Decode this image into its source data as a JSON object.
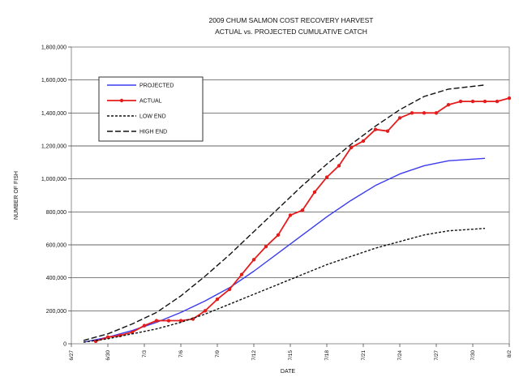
{
  "chart_data": {
    "type": "line",
    "title": [
      "2009 CHUM SALMON COST RECOVERY HARVEST",
      "ACTUAL vs. PROJECTED CUMULATIVE CATCH"
    ],
    "xlabel": "DATE",
    "ylabel": "NUMBER OF FISH",
    "x_tick_labels": [
      "6/27",
      "6/30",
      "7/3",
      "7/6",
      "7/9",
      "7/12",
      "7/15",
      "7/18",
      "7/21",
      "7/24",
      "7/27",
      "7/30",
      "8/2"
    ],
    "y_tick_labels": [
      "0",
      "200,000",
      "400,000",
      "600,000",
      "800,000",
      "1,000,000",
      "1,200,000",
      "1,400,000",
      "1,600,000",
      "1,800,000"
    ],
    "ylim": [
      0,
      1800000
    ],
    "x_range_days_from_june_27": [
      0,
      36
    ],
    "grid": "horizontal",
    "legend_position": "upper-left",
    "series": [
      {
        "name": "PROJECTED",
        "color": "#3b3bf0",
        "dash": "solid",
        "markers": false,
        "points": [
          [
            "6/28",
            10000
          ],
          [
            "6/30",
            40000
          ],
          [
            "7/2",
            80000
          ],
          [
            "7/4",
            130000
          ],
          [
            "7/6",
            190000
          ],
          [
            "7/8",
            260000
          ],
          [
            "7/10",
            340000
          ],
          [
            "7/12",
            440000
          ],
          [
            "7/14",
            550000
          ],
          [
            "7/16",
            660000
          ],
          [
            "7/18",
            770000
          ],
          [
            "7/20",
            870000
          ],
          [
            "7/22",
            960000
          ],
          [
            "7/24",
            1030000
          ],
          [
            "7/26",
            1080000
          ],
          [
            "7/28",
            1110000
          ],
          [
            "7/31",
            1125000
          ]
        ]
      },
      {
        "name": "ACTUAL",
        "color": "#e51c1c",
        "dash": "solid",
        "markers": true,
        "points": [
          [
            "6/29",
            15000
          ],
          [
            "6/30",
            40000
          ],
          [
            "7/1",
            50000
          ],
          [
            "7/2",
            70000
          ],
          [
            "7/3",
            110000
          ],
          [
            "7/4",
            140000
          ],
          [
            "7/5",
            140000
          ],
          [
            "7/6",
            140000
          ],
          [
            "7/7",
            150000
          ],
          [
            "7/8",
            200000
          ],
          [
            "7/9",
            270000
          ],
          [
            "7/10",
            330000
          ],
          [
            "7/11",
            420000
          ],
          [
            "7/12",
            510000
          ],
          [
            "7/13",
            590000
          ],
          [
            "7/14",
            660000
          ],
          [
            "7/15",
            780000
          ],
          [
            "7/16",
            810000
          ],
          [
            "7/17",
            920000
          ],
          [
            "7/18",
            1010000
          ],
          [
            "7/19",
            1080000
          ],
          [
            "7/20",
            1190000
          ],
          [
            "7/21",
            1230000
          ],
          [
            "7/22",
            1300000
          ],
          [
            "7/23",
            1290000
          ],
          [
            "7/24",
            1370000
          ],
          [
            "7/25",
            1400000
          ],
          [
            "7/26",
            1400000
          ],
          [
            "7/27",
            1400000
          ],
          [
            "7/28",
            1450000
          ],
          [
            "7/29",
            1470000
          ],
          [
            "7/30",
            1470000
          ],
          [
            "7/31",
            1470000
          ],
          [
            "8/1",
            1470000
          ],
          [
            "8/2",
            1490000
          ]
        ]
      },
      {
        "name": "LOW END",
        "color": "#111111",
        "dash": "short",
        "markers": false,
        "points": [
          [
            "6/28",
            10000
          ],
          [
            "6/30",
            30000
          ],
          [
            "7/2",
            60000
          ],
          [
            "7/4",
            90000
          ],
          [
            "7/6",
            130000
          ],
          [
            "7/8",
            180000
          ],
          [
            "7/10",
            240000
          ],
          [
            "7/12",
            300000
          ],
          [
            "7/14",
            360000
          ],
          [
            "7/16",
            420000
          ],
          [
            "7/18",
            480000
          ],
          [
            "7/20",
            530000
          ],
          [
            "7/22",
            580000
          ],
          [
            "7/24",
            620000
          ],
          [
            "7/26",
            660000
          ],
          [
            "7/28",
            685000
          ],
          [
            "7/31",
            700000
          ]
        ]
      },
      {
        "name": "HIGH END",
        "color": "#111111",
        "dash": "long",
        "markers": false,
        "points": [
          [
            "6/28",
            20000
          ],
          [
            "6/30",
            60000
          ],
          [
            "7/2",
            120000
          ],
          [
            "7/4",
            190000
          ],
          [
            "7/6",
            290000
          ],
          [
            "7/8",
            410000
          ],
          [
            "7/10",
            540000
          ],
          [
            "7/12",
            680000
          ],
          [
            "7/14",
            820000
          ],
          [
            "7/16",
            960000
          ],
          [
            "7/18",
            1090000
          ],
          [
            "7/20",
            1210000
          ],
          [
            "7/22",
            1320000
          ],
          [
            "7/24",
            1420000
          ],
          [
            "7/26",
            1500000
          ],
          [
            "7/28",
            1545000
          ],
          [
            "7/31",
            1570000
          ]
        ]
      }
    ]
  }
}
